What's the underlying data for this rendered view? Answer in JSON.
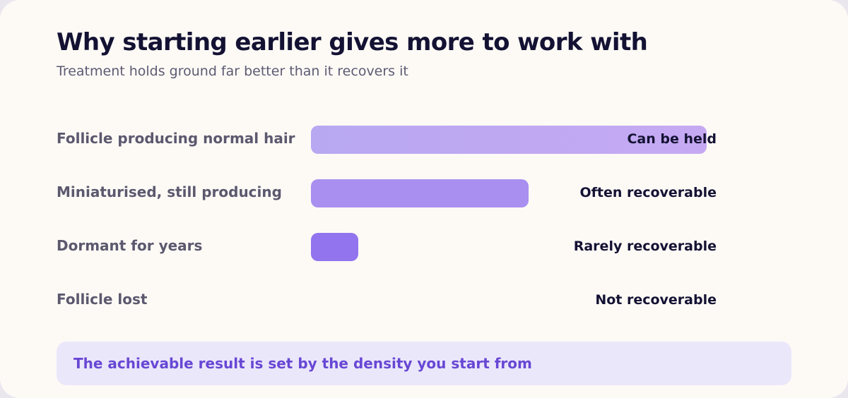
{
  "chart_data": {
    "type": "bar",
    "orientation": "horizontal",
    "title": "Why starting earlier gives more to work with",
    "subtitle": "Treatment holds ground far better than it recovers it",
    "categories": [
      "Follicle producing normal hair",
      "Miniaturised, still producing",
      "Dormant for years",
      "Follicle lost"
    ],
    "values": [
      100,
      55,
      12,
      0
    ],
    "status_labels": [
      "Can be held",
      "Often recoverable",
      "Rarely recoverable",
      "Not recoverable"
    ],
    "bar_colors": [
      "#bca9f3",
      "#a98ff0",
      "#9274ee",
      "#7c5ce8"
    ],
    "xlim": [
      0,
      100
    ],
    "grid": false,
    "legend": "none"
  },
  "note": {
    "text": "The achievable result is set by the density you start from"
  }
}
